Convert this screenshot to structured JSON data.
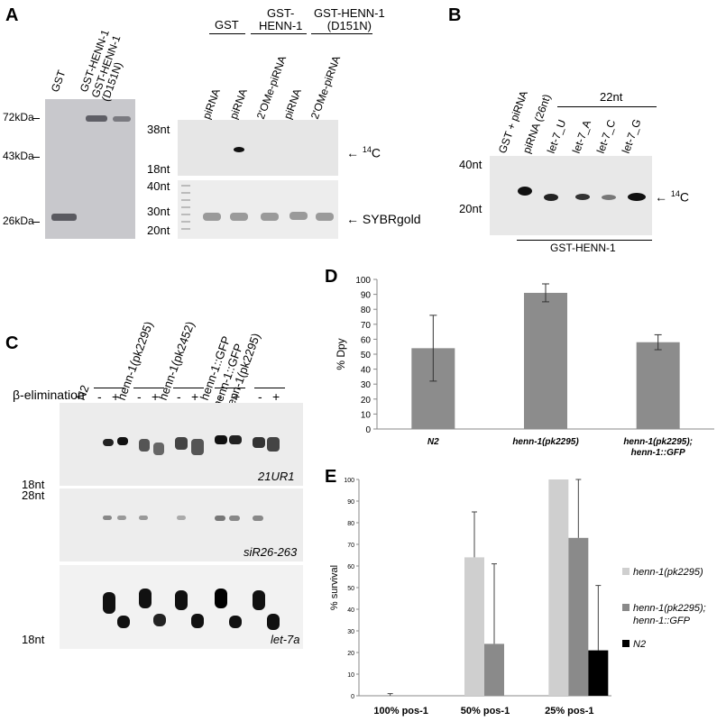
{
  "panelA": {
    "letter": "A",
    "coomassie_lanes": [
      "GST",
      "GST-HENN-1",
      "GST-HENN-1\n(D151N)"
    ],
    "mw_markers": [
      "72kDa",
      "43kDa",
      "26kDa"
    ],
    "group_headers": [
      "GST",
      "GST-\nHENN-1",
      "GST-HENN-1\n(D151N)"
    ],
    "gel_lanes": [
      "piRNA",
      "piRNA",
      "2'OMe-piRNA",
      "piRNA",
      "2'OMe-piRNA"
    ],
    "top_size_markers": [
      "38nt",
      "18nt"
    ],
    "bottom_size_markers": [
      "40nt",
      "30nt",
      "20nt"
    ],
    "label_14c": "14C",
    "label_sybr": "SYBRgold"
  },
  "panelB": {
    "letter": "B",
    "lanes": [
      "GST + piRNA",
      "piRNA (26nt)",
      "let-7_U",
      "let-7_A",
      "let-7_C",
      "let-7_G"
    ],
    "bracket_label": "22nt",
    "size_markers": [
      "40nt",
      "20nt"
    ],
    "label_14c": "14C",
    "bottom_label": "GST-HENN-1"
  },
  "panelC": {
    "letter": "C",
    "strains": [
      "N2",
      "henn-1(pk2295)",
      "henn-1(pk2452)",
      "henn-1::GFP",
      "henn-1::GFP\nhenn-1(pk2295)"
    ],
    "beta_label": "β-elimination",
    "minus": "-",
    "plus": "+",
    "blot_labels": [
      "21UR1",
      "siR26-263",
      "let-7a"
    ],
    "size_markers": [
      "18nt",
      "28nt",
      "18nt"
    ]
  },
  "panelD": {
    "letter": "D",
    "chart_data": {
      "type": "bar",
      "categories": [
        "N2",
        "henn-1(pk2295)",
        "henn-1(pk2295);\nhenn-1::GFP"
      ],
      "values": [
        54,
        91,
        58
      ],
      "errors": [
        22,
        6,
        5
      ],
      "ylabel": "% Dpy",
      "ylim": [
        0,
        100
      ],
      "yticks": [
        0,
        10,
        20,
        30,
        40,
        50,
        60,
        70,
        80,
        90,
        100
      ],
      "bar_color": "#8c8c8c",
      "grid": false
    }
  },
  "panelE": {
    "letter": "E",
    "chart_data": {
      "type": "bar",
      "categories": [
        "100% pos-1",
        "50% pos-1",
        "25% pos-1"
      ],
      "series": [
        {
          "name": "henn-1(pk2295)",
          "values": [
            0,
            64,
            100
          ],
          "errors": [
            1,
            21,
            0
          ],
          "color": "#cfcfcf"
        },
        {
          "name": "henn-1(pk2295);\nhenn-1::GFP",
          "values": [
            0,
            24,
            73
          ],
          "errors": [
            0,
            37,
            27
          ],
          "color": "#8a8a8a"
        },
        {
          "name": "N2",
          "values": [
            0,
            0,
            21
          ],
          "errors": [
            0,
            0,
            30
          ],
          "color": "#000000"
        }
      ],
      "ylabel": "% survival",
      "ylim": [
        0,
        100
      ],
      "yticks": [
        0,
        10,
        20,
        30,
        40,
        50,
        60,
        70,
        80,
        90,
        100
      ],
      "legend": "right",
      "grid": false
    }
  }
}
